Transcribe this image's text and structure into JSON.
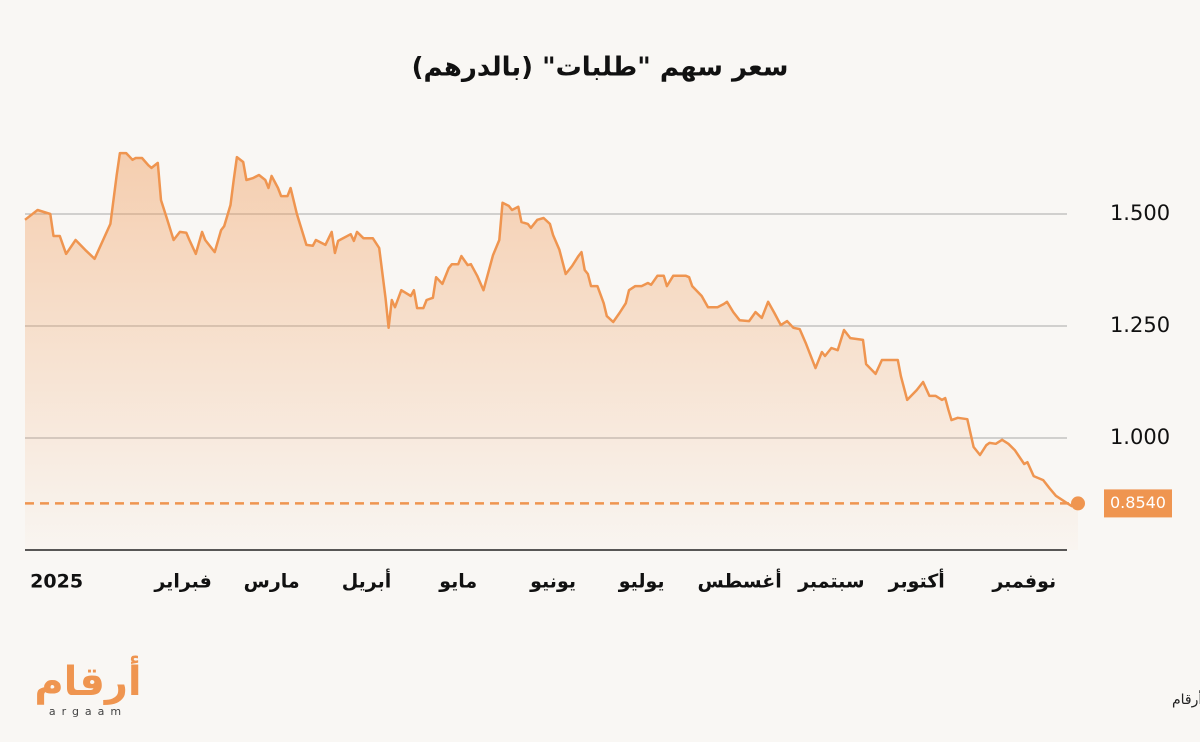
{
  "chart_data": {
    "type": "line",
    "title": "سعر سهم \"طلبات\" (بالدرهم)",
    "x": [
      0,
      4,
      8,
      9,
      11,
      13,
      16,
      19,
      22,
      27,
      29,
      30,
      32,
      34,
      35,
      37,
      39,
      40,
      42,
      43,
      45,
      47,
      49,
      51,
      52,
      54,
      56,
      57,
      60,
      62,
      63,
      65,
      66,
      67,
      69,
      70,
      72,
      74,
      76,
      77,
      78,
      80,
      81,
      83,
      84,
      86,
      89,
      91,
      92,
      95,
      97,
      98,
      99,
      103,
      104,
      105,
      107,
      110,
      112,
      114,
      115,
      116,
      117,
      119,
      122,
      123,
      124,
      126,
      127,
      129,
      130,
      132,
      134,
      135,
      137,
      138,
      140,
      141,
      143,
      145,
      148,
      150,
      151,
      153,
      154,
      156,
      157,
      159,
      160,
      162,
      164,
      166,
      167,
      169,
      171,
      173,
      175,
      176,
      177,
      178,
      179,
      181,
      183,
      184,
      186,
      188,
      190,
      191,
      193,
      195,
      197,
      198,
      200,
      202,
      203,
      205,
      209,
      210,
      211,
      214,
      216,
      219,
      221,
      222,
      224,
      226,
      229,
      231,
      233,
      235,
      237,
      239,
      241,
      243,
      245,
      247,
      250,
      252,
      253,
      255,
      257,
      259,
      261,
      265,
      266,
      269,
      271,
      276,
      277,
      279,
      282,
      284,
      286,
      288,
      290,
      291,
      292,
      293,
      295,
      298,
      300,
      302,
      304,
      305,
      307,
      309,
      311,
      313,
      316,
      317,
      319,
      322,
      324,
      326,
      329,
      331,
      333
    ],
    "values": [
      1.487,
      1.509,
      1.5,
      1.451,
      1.451,
      1.411,
      1.442,
      1.42,
      1.4,
      1.478,
      1.587,
      1.636,
      1.636,
      1.621,
      1.625,
      1.625,
      1.609,
      1.603,
      1.614,
      1.531,
      1.487,
      1.442,
      1.46,
      1.458,
      1.442,
      1.411,
      1.46,
      1.442,
      1.415,
      1.464,
      1.473,
      1.52,
      1.576,
      1.627,
      1.616,
      1.576,
      1.58,
      1.587,
      1.576,
      1.558,
      1.585,
      1.558,
      1.54,
      1.54,
      1.558,
      1.5,
      1.431,
      1.429,
      1.442,
      1.431,
      1.46,
      1.413,
      1.44,
      1.455,
      1.44,
      1.46,
      1.446,
      1.446,
      1.424,
      1.313,
      1.246,
      1.308,
      1.292,
      1.33,
      1.317,
      1.33,
      1.29,
      1.29,
      1.308,
      1.313,
      1.359,
      1.344,
      1.379,
      1.388,
      1.388,
      1.406,
      1.386,
      1.388,
      1.362,
      1.33,
      1.408,
      1.442,
      1.525,
      1.518,
      1.509,
      1.516,
      1.482,
      1.478,
      1.469,
      1.487,
      1.491,
      1.478,
      1.453,
      1.42,
      1.366,
      1.384,
      1.406,
      1.415,
      1.375,
      1.366,
      1.339,
      1.339,
      1.301,
      1.272,
      1.259,
      1.279,
      1.301,
      1.33,
      1.339,
      1.339,
      1.346,
      1.342,
      1.362,
      1.362,
      1.339,
      1.362,
      1.362,
      1.359,
      1.339,
      1.317,
      1.292,
      1.292,
      1.299,
      1.304,
      1.281,
      1.263,
      1.261,
      1.281,
      1.268,
      1.304,
      1.279,
      1.252,
      1.261,
      1.246,
      1.243,
      1.21,
      1.156,
      1.192,
      1.183,
      1.201,
      1.196,
      1.241,
      1.223,
      1.219,
      1.165,
      1.143,
      1.174,
      1.174,
      1.138,
      1.085,
      1.107,
      1.125,
      1.094,
      1.094,
      1.085,
      1.089,
      1.063,
      1.04,
      1.045,
      1.042,
      0.98,
      0.962,
      0.984,
      0.989,
      0.987,
      0.996,
      0.987,
      0.973,
      0.942,
      0.946,
      0.915,
      0.906,
      0.888,
      0.871,
      0.857,
      0.848,
      0.854
    ],
    "color": "#ef9550",
    "xlim": [
      0,
      333
    ],
    "xticks": [
      {
        "value": 10,
        "label": "2025"
      },
      {
        "value": 50,
        "label": "فبراير"
      },
      {
        "value": 78,
        "label": "مارس"
      },
      {
        "value": 108,
        "label": "أبريل"
      },
      {
        "value": 137,
        "label": "مايو"
      },
      {
        "value": 167,
        "label": "يونيو"
      },
      {
        "value": 195,
        "label": "يوليو"
      },
      {
        "value": 226,
        "label": "أغسطس"
      },
      {
        "value": 255,
        "label": "سبتمبر"
      },
      {
        "value": 282,
        "label": "أكتوبر"
      },
      {
        "value": 316,
        "label": "نوفمبر"
      }
    ],
    "ylim": [
      0.75,
      1.75
    ],
    "yticks": [
      {
        "value": 1.0,
        "label": "1.000"
      },
      {
        "value": 1.25,
        "label": "1.250"
      },
      {
        "value": 1.5,
        "label": "1.500"
      }
    ],
    "grid": true,
    "current": {
      "value": 0.854,
      "label": "0.8540"
    }
  },
  "footer": {
    "logo": "أرقام",
    "logo_latin": "argaam",
    "source": "المصدر: ياهو فاينانس/ أرقام"
  }
}
